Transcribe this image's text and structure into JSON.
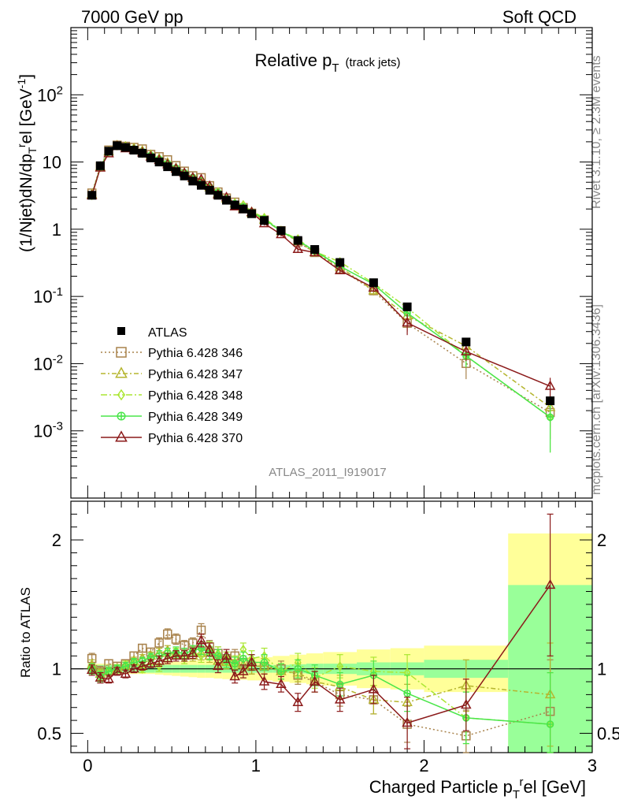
{
  "header": {
    "left": "7000 GeV pp",
    "right": "Soft QCD"
  },
  "side_labels": {
    "top": "Rivet 3.1.10, ≥ 2.3M events",
    "bottom": "mcplots.cern.ch [arXiv:1306.3436]"
  },
  "analysis_id": "ATLAS_2011_I919017",
  "chart_data": {
    "type": "line",
    "title": "Relative p",
    "title_sub": "T",
    "title_note": "(track jets)",
    "xlabel": "Charged Particle p",
    "xlabel_sub": "T",
    "xlabel_sup": "r",
    "xlabel_suffix": "el [GeV]",
    "ylabel": "(1/Njet)dN/dp",
    "ylabel_sub": "T",
    "ylabel_sup": "r",
    "ylabel_suffix": "el [GeV",
    "ylabel_unit_sup": "-1",
    "ylabel_close": "]",
    "ratio_ylabel": "Ratio to ATLAS",
    "xlim": [
      -0.1,
      3.0
    ],
    "ylim": [
      0.0001,
      1000
    ],
    "yscale": "log",
    "ratio_ylim": [
      0.35,
      2.3
    ],
    "x_ticks": [
      "0",
      "1",
      "2",
      "3"
    ],
    "y_ticks": [
      {
        "base": "10",
        "exp": "-3",
        "value": 0.001
      },
      {
        "base": "10",
        "exp": "-2",
        "value": 0.01
      },
      {
        "base": "10",
        "exp": "-1",
        "value": 0.1
      },
      {
        "base": "1",
        "exp": "",
        "value": 1
      },
      {
        "base": "10",
        "exp": "",
        "value": 10
      },
      {
        "base": "10",
        "exp": "2",
        "value": 100
      }
    ],
    "ratio_ticks": [
      {
        "label": "0.5",
        "value": 0.5
      },
      {
        "label": "1",
        "value": 1
      },
      {
        "label": "2",
        "value": 2
      }
    ],
    "legend_placement": "middle-left",
    "x": [
      0.025,
      0.075,
      0.125,
      0.175,
      0.225,
      0.275,
      0.325,
      0.375,
      0.425,
      0.475,
      0.525,
      0.575,
      0.625,
      0.675,
      0.725,
      0.775,
      0.825,
      0.875,
      0.925,
      0.975,
      1.05,
      1.15,
      1.25,
      1.35,
      1.5,
      1.7,
      1.9,
      2.25,
      2.75
    ],
    "atlas": {
      "name": "ATLAS",
      "color": "#000000",
      "values": [
        3.2,
        8.8,
        14.5,
        17.5,
        16.5,
        15.0,
        13.5,
        11.5,
        10.0,
        8.5,
        7.2,
        6.2,
        5.2,
        4.5,
        3.8,
        3.2,
        2.7,
        2.3,
        2.0,
        1.7,
        1.35,
        0.95,
        0.68,
        0.5,
        0.32,
        0.16,
        0.07,
        0.021,
        0.0028
      ],
      "band_edges": [
        0.0,
        0.05,
        0.1,
        0.15,
        0.2,
        0.25,
        0.3,
        0.35,
        0.4,
        0.45,
        0.5,
        0.55,
        0.6,
        0.65,
        0.7,
        0.75,
        0.8,
        0.85,
        0.9,
        0.95,
        1.0,
        1.1,
        1.2,
        1.3,
        1.4,
        1.6,
        1.8,
        2.0,
        2.5,
        3.0
      ],
      "band_stat": [
        0.03,
        0.03,
        0.03,
        0.03,
        0.03,
        0.03,
        0.03,
        0.03,
        0.03,
        0.03,
        0.03,
        0.03,
        0.03,
        0.03,
        0.03,
        0.03,
        0.03,
        0.03,
        0.03,
        0.03,
        0.03,
        0.03,
        0.035,
        0.04,
        0.04,
        0.05,
        0.05,
        0.07,
        0.65
      ],
      "band_total": [
        0.04,
        0.04,
        0.04,
        0.04,
        0.04,
        0.04,
        0.04,
        0.04,
        0.045,
        0.05,
        0.055,
        0.06,
        0.065,
        0.07,
        0.07,
        0.075,
        0.08,
        0.08,
        0.085,
        0.09,
        0.09,
        0.1,
        0.11,
        0.12,
        0.13,
        0.15,
        0.16,
        0.18,
        1.05
      ]
    },
    "series": [
      {
        "name": "Pythia 6.428 346",
        "color": "#a8824b",
        "marker": "square",
        "dash": "2,3",
        "ratio": [
          1.08,
          0.98,
          1.04,
          1.02,
          1.04,
          1.1,
          1.16,
          1.13,
          1.2,
          1.27,
          1.23,
          1.18,
          1.2,
          1.3,
          1.17,
          1.12,
          1.08,
          1.1,
          1.05,
          1.02,
          1.02,
          1.0,
          0.95,
          0.9,
          0.8,
          0.76,
          0.57,
          0.48,
          0.67
        ],
        "err": [
          0.04,
          0.04,
          0.03,
          0.03,
          0.03,
          0.03,
          0.03,
          0.03,
          0.04,
          0.04,
          0.04,
          0.04,
          0.04,
          0.05,
          0.05,
          0.05,
          0.05,
          0.05,
          0.05,
          0.06,
          0.06,
          0.06,
          0.07,
          0.08,
          0.09,
          0.11,
          0.14,
          0.2,
          0.4
        ]
      },
      {
        "name": "Pythia 6.428 347",
        "color": "#b5b52f",
        "marker": "triangle-open",
        "dash": "6,3,2,3",
        "ratio": [
          1.03,
          0.96,
          0.98,
          1.0,
          1.02,
          1.06,
          1.08,
          1.1,
          1.12,
          1.14,
          1.12,
          1.1,
          1.1,
          1.12,
          1.1,
          1.06,
          1.05,
          1.04,
          1.03,
          1.02,
          1.02,
          0.98,
          0.97,
          0.9,
          0.86,
          0.76,
          0.74,
          0.87,
          0.8
        ],
        "err": [
          0.04,
          0.04,
          0.03,
          0.03,
          0.03,
          0.03,
          0.03,
          0.03,
          0.04,
          0.04,
          0.04,
          0.04,
          0.04,
          0.05,
          0.05,
          0.05,
          0.05,
          0.05,
          0.05,
          0.06,
          0.06,
          0.06,
          0.07,
          0.08,
          0.09,
          0.11,
          0.14,
          0.2,
          0.4
        ]
      },
      {
        "name": "Pythia 6.428 348",
        "color": "#aae632",
        "marker": "diamond",
        "dash": "8,3,2,3",
        "ratio": [
          1.0,
          0.95,
          0.97,
          1.0,
          1.03,
          1.05,
          1.0,
          1.06,
          1.02,
          1.1,
          1.12,
          1.08,
          1.14,
          1.1,
          1.16,
          1.12,
          1.08,
          1.05,
          1.15,
          1.08,
          1.1,
          0.98,
          1.05,
          0.93,
          1.02,
          0.98,
          0.97,
          0.62,
          0.57
        ],
        "err": [
          0.04,
          0.04,
          0.03,
          0.03,
          0.03,
          0.03,
          0.03,
          0.03,
          0.04,
          0.04,
          0.04,
          0.04,
          0.04,
          0.05,
          0.05,
          0.05,
          0.05,
          0.05,
          0.05,
          0.06,
          0.06,
          0.06,
          0.07,
          0.08,
          0.09,
          0.11,
          0.14,
          0.2,
          0.4
        ]
      },
      {
        "name": "Pythia 6.428 349",
        "color": "#4ae64a",
        "marker": "plus-circle",
        "dash": "",
        "ratio": [
          1.0,
          0.94,
          0.98,
          1.0,
          1.02,
          1.05,
          1.06,
          1.09,
          1.1,
          1.12,
          1.13,
          1.12,
          1.14,
          1.16,
          1.12,
          1.1,
          1.06,
          1.04,
          1.08,
          1.05,
          1.05,
          0.98,
          1.0,
          0.95,
          0.88,
          0.95,
          0.81,
          0.62,
          0.57
        ],
        "err": [
          0.04,
          0.04,
          0.03,
          0.03,
          0.03,
          0.03,
          0.03,
          0.03,
          0.04,
          0.04,
          0.04,
          0.04,
          0.04,
          0.05,
          0.05,
          0.05,
          0.05,
          0.05,
          0.05,
          0.06,
          0.06,
          0.06,
          0.07,
          0.08,
          0.09,
          0.11,
          0.14,
          0.2,
          0.4
        ]
      },
      {
        "name": "Pythia 6.428 370",
        "color": "#8b1a1a",
        "marker": "triangle-open",
        "dash": "",
        "ratio": [
          0.99,
          0.93,
          0.92,
          0.98,
          0.96,
          1.0,
          1.02,
          1.04,
          1.06,
          1.08,
          1.1,
          1.1,
          1.12,
          1.22,
          1.15,
          1.02,
          1.1,
          0.94,
          0.98,
          1.05,
          0.9,
          0.88,
          0.74,
          0.9,
          0.76,
          0.84,
          0.58,
          0.72,
          1.65
        ],
        "err": [
          0.04,
          0.04,
          0.03,
          0.03,
          0.03,
          0.03,
          0.03,
          0.03,
          0.04,
          0.04,
          0.04,
          0.04,
          0.04,
          0.05,
          0.05,
          0.05,
          0.05,
          0.05,
          0.05,
          0.06,
          0.06,
          0.06,
          0.07,
          0.08,
          0.09,
          0.11,
          0.2,
          0.2,
          0.55
        ]
      }
    ]
  }
}
